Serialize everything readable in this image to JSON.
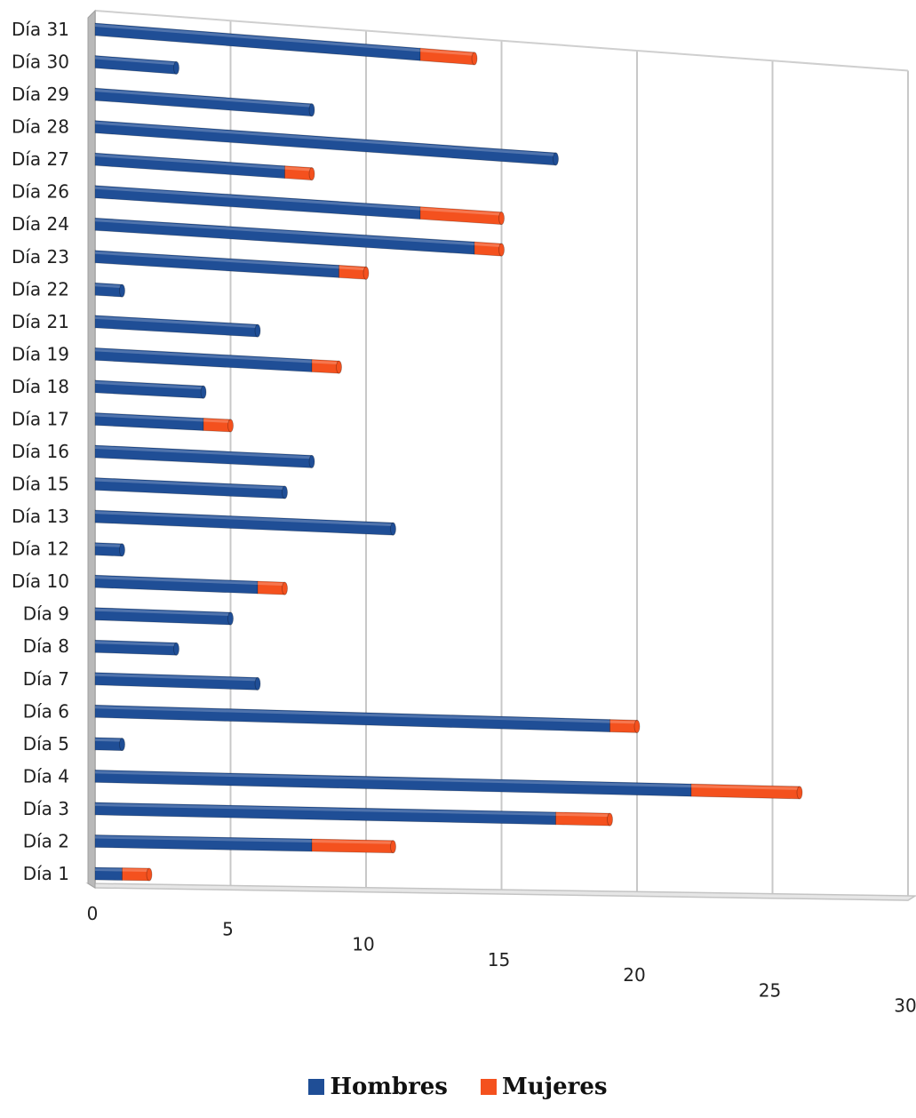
{
  "chart_data": {
    "type": "bar",
    "orientation": "horizontal",
    "stacked": true,
    "three_d": true,
    "grid": true,
    "legend_position": "bottom",
    "xlim": [
      0,
      30
    ],
    "x_ticks": [
      "0",
      "5",
      "10",
      "15",
      "20",
      "25",
      "30"
    ],
    "categories": [
      "Día 31",
      "Día 30",
      "Día 29",
      "Día 28",
      "Día 27",
      "Día 26",
      "Día 24",
      "Día 23",
      "Día 22",
      "Día 21",
      "Día 19",
      "Día 18",
      "Día 17",
      "Día 16",
      "Día 15",
      "Día 13",
      "Día 12",
      "Día 10",
      "Día 9",
      "Día 8",
      "Día 7",
      "Día 6",
      "Día 5",
      "Día 4",
      "Día 3",
      "Día 2",
      "Día 1"
    ],
    "series": [
      {
        "name": "Hombres",
        "color": "#1f4e96",
        "values": [
          12,
          3,
          8,
          17,
          7,
          12,
          14,
          9,
          1,
          6,
          8,
          4,
          4,
          8,
          7,
          11,
          1,
          6,
          5,
          3,
          6,
          19,
          1,
          22,
          17,
          8,
          1
        ]
      },
      {
        "name": "Mujeres",
        "color": "#f4511e",
        "values": [
          2,
          0,
          0,
          0,
          1,
          3,
          1,
          1,
          0,
          0,
          1,
          0,
          1,
          0,
          0,
          0,
          0,
          1,
          0,
          0,
          0,
          1,
          0,
          4,
          2,
          3,
          1
        ]
      }
    ]
  }
}
